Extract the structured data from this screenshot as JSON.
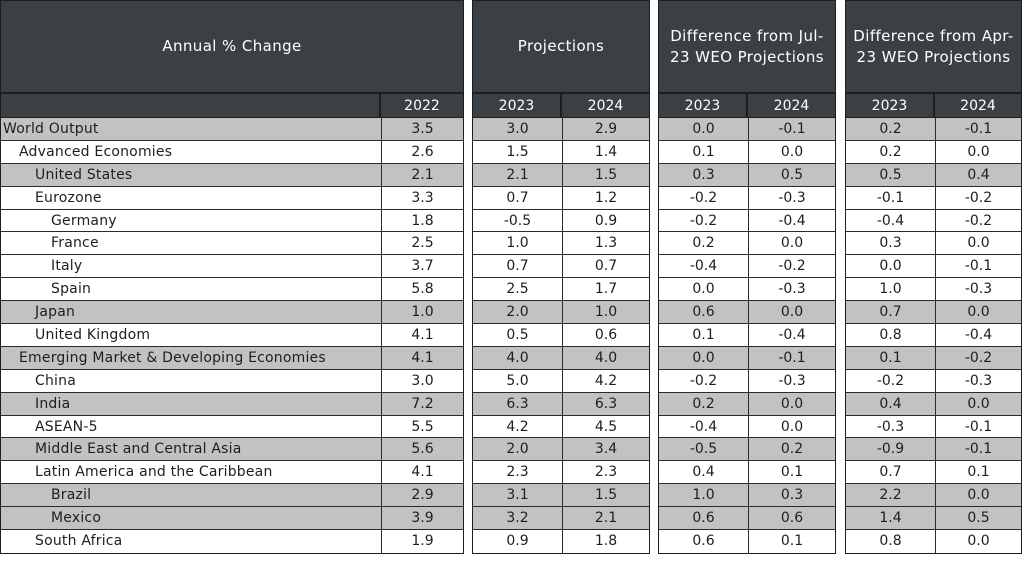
{
  "headers": {
    "annual": "Annual % Change",
    "projections": "Projections",
    "diff_jul": "Difference from Jul-23 WEO Projections",
    "diff_apr": "Difference from Apr-23 WEO Projections"
  },
  "years": {
    "y2022": "2022",
    "y2023": "2023",
    "y2024": "2024"
  },
  "rows": [
    {
      "name": "World Output",
      "level": 0,
      "shade": true,
      "v2022": "3.5",
      "p2023": "3.0",
      "p2024": "2.9",
      "j2023": "0.0",
      "j2024": "-0.1",
      "a2023": "0.2",
      "a2024": "-0.1"
    },
    {
      "name": "Advanced Economies",
      "level": 1,
      "shade": false,
      "v2022": "2.6",
      "p2023": "1.5",
      "p2024": "1.4",
      "j2023": "0.1",
      "j2024": "0.0",
      "a2023": "0.2",
      "a2024": "0.0"
    },
    {
      "name": "United States",
      "level": 2,
      "shade": true,
      "v2022": "2.1",
      "p2023": "2.1",
      "p2024": "1.5",
      "j2023": "0.3",
      "j2024": "0.5",
      "a2023": "0.5",
      "a2024": "0.4"
    },
    {
      "name": "Eurozone",
      "level": 2,
      "shade": false,
      "v2022": "3.3",
      "p2023": "0.7",
      "p2024": "1.2",
      "j2023": "-0.2",
      "j2024": "-0.3",
      "a2023": "-0.1",
      "a2024": "-0.2"
    },
    {
      "name": "Germany",
      "level": 3,
      "shade": false,
      "v2022": "1.8",
      "p2023": "-0.5",
      "p2024": "0.9",
      "j2023": "-0.2",
      "j2024": "-0.4",
      "a2023": "-0.4",
      "a2024": "-0.2"
    },
    {
      "name": "France",
      "level": 3,
      "shade": false,
      "v2022": "2.5",
      "p2023": "1.0",
      "p2024": "1.3",
      "j2023": "0.2",
      "j2024": "0.0",
      "a2023": "0.3",
      "a2024": "0.0"
    },
    {
      "name": "Italy",
      "level": 3,
      "shade": false,
      "v2022": "3.7",
      "p2023": "0.7",
      "p2024": "0.7",
      "j2023": "-0.4",
      "j2024": "-0.2",
      "a2023": "0.0",
      "a2024": "-0.1"
    },
    {
      "name": "Spain",
      "level": 3,
      "shade": false,
      "v2022": "5.8",
      "p2023": "2.5",
      "p2024": "1.7",
      "j2023": "0.0",
      "j2024": "-0.3",
      "a2023": "1.0",
      "a2024": "-0.3"
    },
    {
      "name": "Japan",
      "level": 2,
      "shade": true,
      "v2022": "1.0",
      "p2023": "2.0",
      "p2024": "1.0",
      "j2023": "0.6",
      "j2024": "0.0",
      "a2023": "0.7",
      "a2024": "0.0"
    },
    {
      "name": "United Kingdom",
      "level": 2,
      "shade": false,
      "v2022": "4.1",
      "p2023": "0.5",
      "p2024": "0.6",
      "j2023": "0.1",
      "j2024": "-0.4",
      "a2023": "0.8",
      "a2024": "-0.4"
    },
    {
      "name": "Emerging Market & Developing Economies",
      "level": 1,
      "shade": true,
      "v2022": "4.1",
      "p2023": "4.0",
      "p2024": "4.0",
      "j2023": "0.0",
      "j2024": "-0.1",
      "a2023": "0.1",
      "a2024": "-0.2"
    },
    {
      "name": "China",
      "level": 2,
      "shade": false,
      "v2022": "3.0",
      "p2023": "5.0",
      "p2024": "4.2",
      "j2023": "-0.2",
      "j2024": "-0.3",
      "a2023": "-0.2",
      "a2024": "-0.3"
    },
    {
      "name": "India",
      "level": 2,
      "shade": true,
      "v2022": "7.2",
      "p2023": "6.3",
      "p2024": "6.3",
      "j2023": "0.2",
      "j2024": "0.0",
      "a2023": "0.4",
      "a2024": "0.0"
    },
    {
      "name": "ASEAN-5",
      "level": 2,
      "shade": false,
      "v2022": "5.5",
      "p2023": "4.2",
      "p2024": "4.5",
      "j2023": "-0.4",
      "j2024": "0.0",
      "a2023": "-0.3",
      "a2024": "-0.1"
    },
    {
      "name": "Middle East and Central Asia",
      "level": 2,
      "shade": true,
      "v2022": "5.6",
      "p2023": "2.0",
      "p2024": "3.4",
      "j2023": "-0.5",
      "j2024": "0.2",
      "a2023": "-0.9",
      "a2024": "-0.1"
    },
    {
      "name": "Latin America and the Caribbean",
      "level": 2,
      "shade": false,
      "v2022": "4.1",
      "p2023": "2.3",
      "p2024": "2.3",
      "j2023": "0.4",
      "j2024": "0.1",
      "a2023": "0.7",
      "a2024": "0.1"
    },
    {
      "name": "Brazil",
      "level": 3,
      "shade": true,
      "v2022": "2.9",
      "p2023": "3.1",
      "p2024": "1.5",
      "j2023": "1.0",
      "j2024": "0.3",
      "a2023": "2.2",
      "a2024": "0.0"
    },
    {
      "name": "Mexico",
      "level": 3,
      "shade": true,
      "v2022": "3.9",
      "p2023": "3.2",
      "p2024": "2.1",
      "j2023": "0.6",
      "j2024": "0.6",
      "a2023": "1.4",
      "a2024": "0.5"
    },
    {
      "name": "South Africa",
      "level": 2,
      "shade": false,
      "v2022": "1.9",
      "p2023": "0.9",
      "p2024": "1.8",
      "j2023": "0.6",
      "j2024": "0.1",
      "a2023": "0.8",
      "a2024": "0.0"
    }
  ]
}
